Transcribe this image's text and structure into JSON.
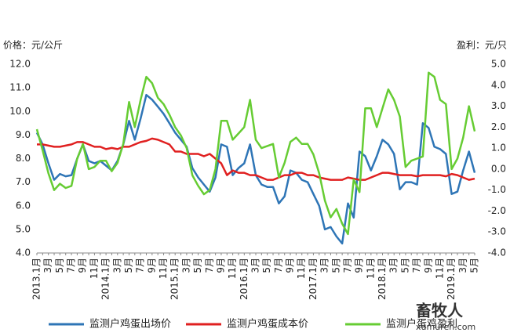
{
  "chart_data": {
    "type": "line",
    "y_axis_label": "价格：元/公斤",
    "y2_axis_label": "盈利：元/只",
    "categories": [
      "2013.1月",
      null,
      "3月",
      null,
      "5月",
      null,
      "7月",
      null,
      "9月",
      null,
      "11月",
      null,
      "2014.1月",
      null,
      "3月",
      null,
      "5月",
      null,
      "7月",
      null,
      "9月",
      null,
      "11月",
      null,
      "2015.1月",
      null,
      "3月",
      null,
      "5月",
      null,
      "7月",
      null,
      "9月",
      null,
      "11月",
      null,
      "2016.1月",
      null,
      "3月",
      null,
      "5月",
      null,
      "7月",
      null,
      "9月",
      null,
      "11月",
      null,
      "2017.1月",
      null,
      "3月",
      null,
      "5月",
      null,
      "7月",
      null,
      "9月",
      null,
      "11月",
      null,
      "2018.1月",
      null,
      "3月",
      null,
      "5月",
      null,
      "7月",
      null,
      "9月",
      null,
      "11月",
      null,
      "2019.1月",
      null,
      "3月",
      null,
      "5月"
    ],
    "series": [
      {
        "name": "监测户鸡蛋出场价",
        "color": "#2e75b6",
        "axis": "y",
        "values": [
          9.1,
          8.6,
          7.8,
          7.1,
          7.35,
          7.25,
          7.3,
          8.0,
          8.6,
          7.9,
          7.8,
          7.9,
          7.7,
          7.5,
          7.9,
          8.6,
          9.6,
          8.8,
          9.7,
          10.7,
          10.5,
          10.2,
          9.9,
          9.5,
          9.1,
          8.8,
          8.5,
          7.6,
          7.2,
          6.9,
          6.6,
          7.2,
          8.6,
          8.5,
          7.3,
          7.6,
          7.8,
          8.6,
          7.3,
          6.9,
          6.8,
          6.8,
          6.1,
          6.4,
          7.5,
          7.4,
          7.1,
          7.0,
          6.5,
          6.0,
          5.0,
          5.1,
          4.7,
          4.4,
          6.1,
          5.5,
          8.3,
          8.1,
          7.5,
          8.1,
          8.8,
          8.6,
          8.2,
          6.7,
          7.0,
          7.0,
          6.9,
          9.5,
          9.3,
          8.5,
          8.4,
          8.2,
          6.5,
          6.6,
          7.5,
          8.3,
          7.4
        ]
      },
      {
        "name": "监测户鸡蛋成本价",
        "color": "#e02020",
        "axis": "y",
        "values": [
          8.6,
          8.6,
          8.55,
          8.5,
          8.5,
          8.55,
          8.6,
          8.7,
          8.7,
          8.6,
          8.5,
          8.5,
          8.4,
          8.45,
          8.4,
          8.5,
          8.5,
          8.6,
          8.7,
          8.75,
          8.85,
          8.8,
          8.7,
          8.6,
          8.3,
          8.3,
          8.2,
          8.2,
          8.2,
          8.1,
          8.2,
          8.0,
          7.8,
          7.3,
          7.5,
          7.4,
          7.4,
          7.3,
          7.3,
          7.2,
          7.1,
          7.1,
          7.2,
          7.3,
          7.3,
          7.4,
          7.4,
          7.3,
          7.3,
          7.2,
          7.15,
          7.1,
          7.1,
          7.1,
          7.2,
          7.15,
          7.1,
          7.1,
          7.2,
          7.3,
          7.4,
          7.4,
          7.35,
          7.3,
          7.3,
          7.3,
          7.25,
          7.3,
          7.3,
          7.3,
          7.3,
          7.25,
          7.35,
          7.3,
          7.2,
          7.1,
          7.15
        ]
      },
      {
        "name": "监测户蛋鸡盈利",
        "color": "#66cc33",
        "axis": "y2",
        "values": [
          1.9,
          0.9,
          -0.2,
          -1.0,
          -0.7,
          -0.9,
          -0.8,
          0.5,
          1.2,
          0.0,
          0.1,
          0.4,
          0.4,
          -0.1,
          0.3,
          1.2,
          3.2,
          2.0,
          3.3,
          4.4,
          4.1,
          3.4,
          3.1,
          2.6,
          2.0,
          1.6,
          1.0,
          -0.3,
          -0.8,
          -1.2,
          -1.0,
          0.0,
          2.3,
          2.3,
          1.4,
          1.7,
          2.0,
          3.3,
          1.4,
          1.0,
          1.1,
          1.2,
          -0.4,
          0.3,
          1.3,
          1.5,
          1.2,
          1.2,
          0.7,
          -0.2,
          -1.5,
          -2.3,
          -1.9,
          -2.6,
          -3.1,
          -0.5,
          -1.1,
          2.9,
          2.9,
          2.0,
          2.9,
          3.8,
          3.3,
          2.5,
          0.1,
          0.4,
          0.5,
          0.6,
          4.6,
          4.4,
          3.3,
          3.1,
          0.0,
          0.5,
          1.5,
          3.0,
          1.8
        ]
      }
    ],
    "ylim": [
      4,
      12
    ],
    "yticks": [
      {
        "value": 4,
        "label": "4.0"
      },
      {
        "value": 5,
        "label": "5.0"
      },
      {
        "value": 6,
        "label": "6.0"
      },
      {
        "value": 7,
        "label": "7.0"
      },
      {
        "value": 8,
        "label": "8.0"
      },
      {
        "value": 9,
        "label": "9.0"
      },
      {
        "value": 10,
        "label": "10.0"
      },
      {
        "value": 11,
        "label": "11.0"
      },
      {
        "value": 12,
        "label": "12.0"
      }
    ],
    "y2lim": [
      -4,
      5
    ],
    "y2ticks": [
      {
        "value": -4,
        "label": "-4.0"
      },
      {
        "value": -3,
        "label": "-3.0"
      },
      {
        "value": -2,
        "label": "-2.0"
      },
      {
        "value": -1,
        "label": "-1.0"
      },
      {
        "value": 0,
        "label": "0.0"
      },
      {
        "value": 1,
        "label": "1.0"
      },
      {
        "value": 2,
        "label": "2.0"
      },
      {
        "value": 3,
        "label": "3.0"
      },
      {
        "value": 4,
        "label": "4.0"
      },
      {
        "value": 5,
        "label": "5.0"
      }
    ],
    "grid": false,
    "legend": "bottom",
    "watermark": [
      "畜牧人",
      "xumuren.com"
    ]
  }
}
